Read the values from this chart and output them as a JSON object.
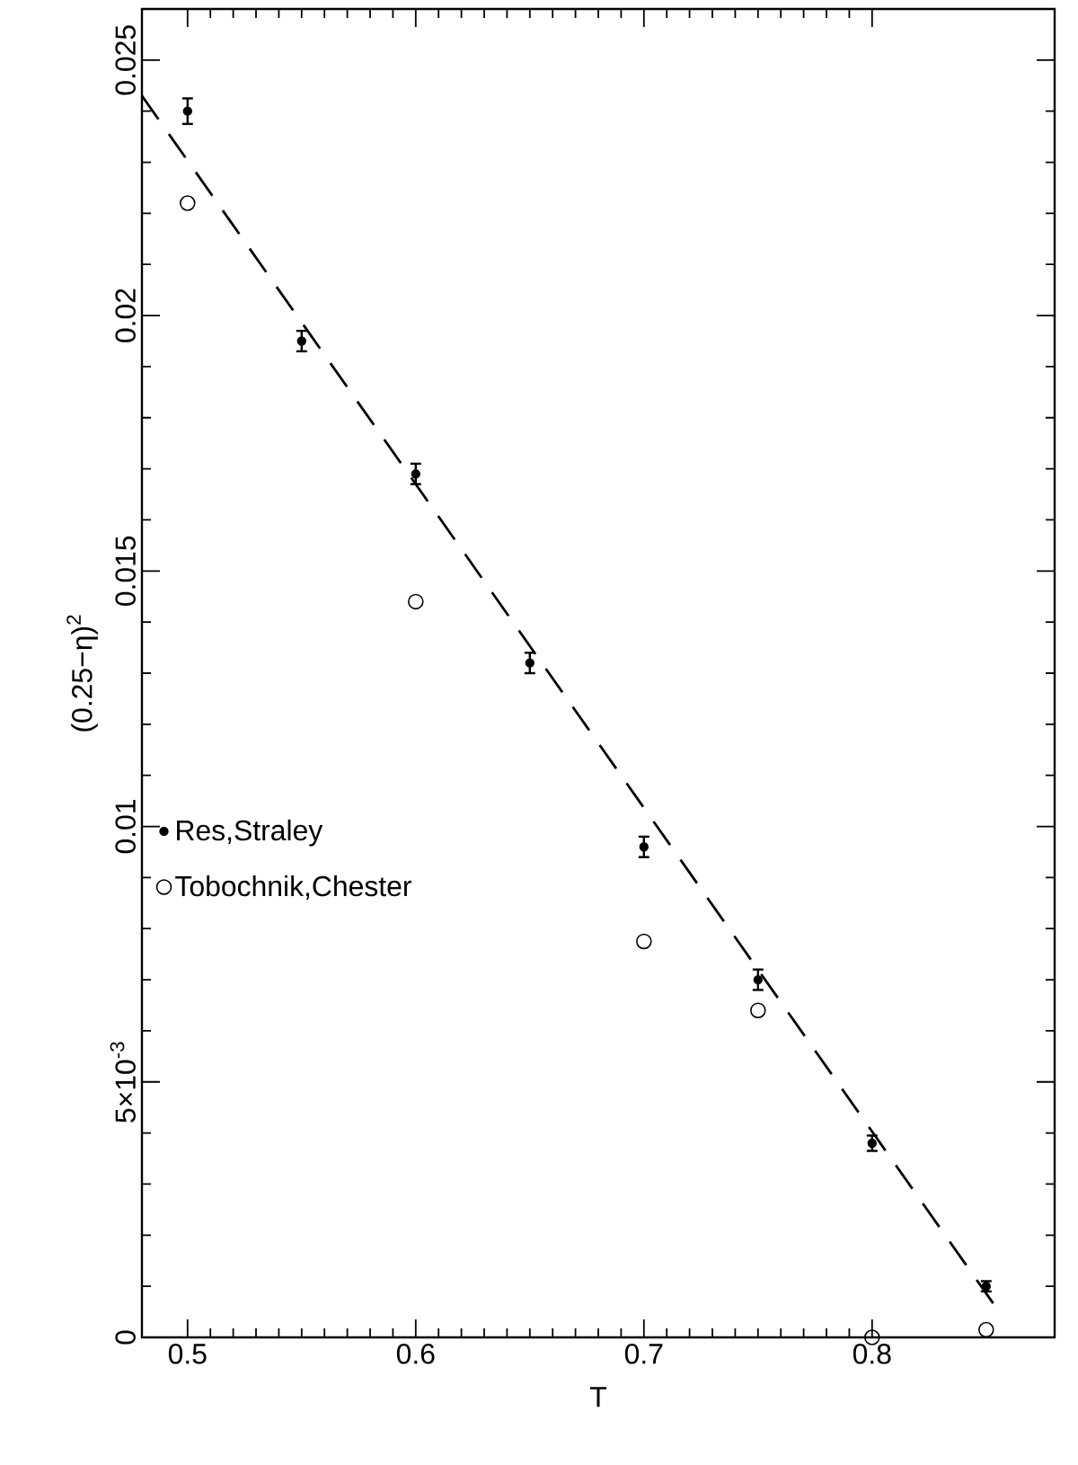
{
  "chart_data": {
    "type": "scatter",
    "xlabel": "T",
    "ylabel": "(0.25−η)$^{2}$",
    "xlim": [
      0.48,
      0.88
    ],
    "ylim": [
      0,
      0.026
    ],
    "xticks": [
      0.5,
      0.6,
      0.7,
      0.8
    ],
    "yticks": [
      0,
      {
        "value": 0.005,
        "label": "5×10$^{-3}$"
      },
      0.01,
      0.015,
      0.02,
      0.025
    ],
    "legend": "left",
    "grid": false,
    "marker": "circle",
    "series": [
      {
        "name": "Res,Straley",
        "color": "#000000",
        "x": [
          0.5,
          0.55,
          0.6,
          0.65,
          0.7,
          0.75,
          0.8,
          0.85
        ],
        "values": [
          0.024,
          0.0195,
          0.0169,
          0.0132,
          0.0096,
          0.007,
          0.0038,
          0.001
        ],
        "errors": [
          0.00025,
          0.0002,
          0.0002,
          0.0002,
          0.0002,
          0.0002,
          0.00015,
          0.0001
        ]
      },
      {
        "name": "Tobochnik,Chester",
        "color": "#000000",
        "x": [
          0.5,
          0.6,
          0.7,
          0.75,
          0.8,
          0.85
        ],
        "values": [
          0.0222,
          0.0144,
          0.00775,
          0.0064,
          0.0,
          0.00015
        ]
      },
      {
        "type": "line",
        "color": "#000000",
        "x": [
          0.48,
          0.8557
        ],
        "values": [
          0.0243,
          0.0005
        ],
        "line_style": "dashed",
        "marker": "none"
      }
    ]
  }
}
